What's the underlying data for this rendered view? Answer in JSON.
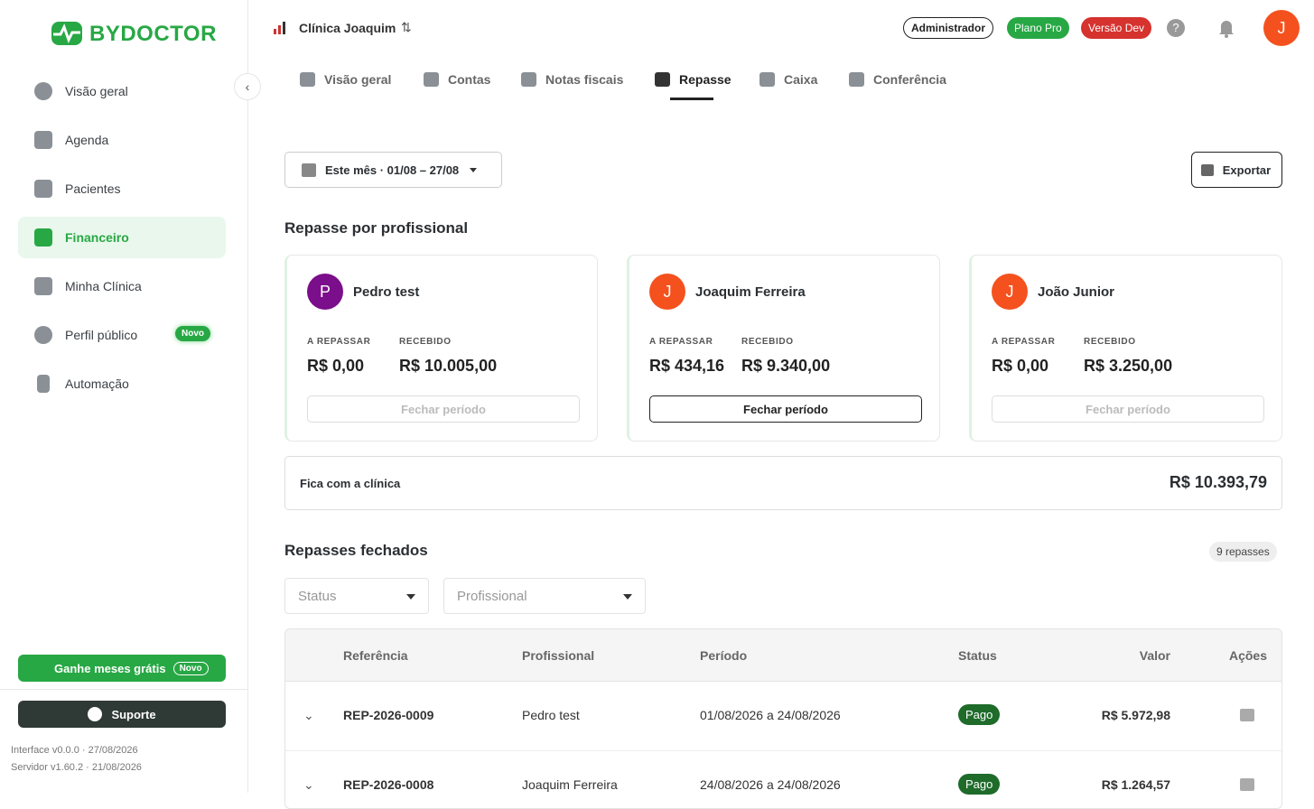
{
  "sidebar": {
    "logo": "BYDOCTOR",
    "nav": [
      {
        "label": "Visão geral"
      },
      {
        "label": "Agenda"
      },
      {
        "label": "Pacientes"
      },
      {
        "label": "Financeiro"
      },
      {
        "label": "Minha Clínica"
      },
      {
        "label": "Perfil público",
        "badge": "Novo"
      },
      {
        "label": "Automação"
      }
    ],
    "promo": {
      "label": "Ganhe meses grátis",
      "badge": "Novo"
    },
    "support": "Suporte",
    "versions": [
      "Interface v0.0.0 · 27/08/2026",
      "Servidor v1.60.2 · 21/08/2026"
    ]
  },
  "header": {
    "clinic": "Clínica Joaquim",
    "badges": [
      "Administrador",
      "Plano Pro",
      "Versão Dev"
    ],
    "avatar": "J"
  },
  "tabs": [
    "Visão geral",
    "Contas",
    "Notas fiscais",
    "Repasse",
    "Caixa",
    "Conferência"
  ],
  "toolbar": {
    "period": "Este mês · 01/08 – 27/08",
    "export": "Exportar"
  },
  "professionals": {
    "title": "Repasse por profissional",
    "cards": [
      {
        "initial": "P",
        "name": "Pedro test",
        "to_pay_label": "A REPASSAR",
        "to_pay": "R$ 0,00",
        "received_label": "RECEBIDO",
        "received": "R$ 10.005,00",
        "action": "Fechar período"
      },
      {
        "initial": "J",
        "name": "Joaquim Ferreira",
        "to_pay_label": "A REPASSAR",
        "to_pay": "R$ 434,16",
        "received_label": "RECEBIDO",
        "received": "R$ 9.340,00",
        "action": "Fechar período"
      },
      {
        "initial": "J",
        "name": "João Junior",
        "to_pay_label": "A REPASSAR",
        "to_pay": "R$ 0,00",
        "received_label": "RECEBIDO",
        "received": "R$ 3.250,00",
        "action": "Fechar período"
      }
    ]
  },
  "clinic_share": {
    "label": "Fica com a clínica",
    "value": "R$ 10.393,79"
  },
  "closed": {
    "title": "Repasses fechados",
    "count": "9 repasses",
    "filters": [
      "Status",
      "Profissional"
    ],
    "table": {
      "columns": [
        "Referência",
        "Profissional",
        "Período",
        "Status",
        "Valor",
        "Ações"
      ],
      "rows": [
        [
          "REP-2026-0009",
          "Pedro test",
          "01/08/2026 a 24/08/2026",
          "Pago",
          "R$ 5.972,98"
        ],
        [
          "REP-2026-0008",
          "Joaquim Ferreira",
          "24/08/2026 a 24/08/2026",
          "Pago",
          "R$ 1.264,57"
        ]
      ]
    }
  }
}
